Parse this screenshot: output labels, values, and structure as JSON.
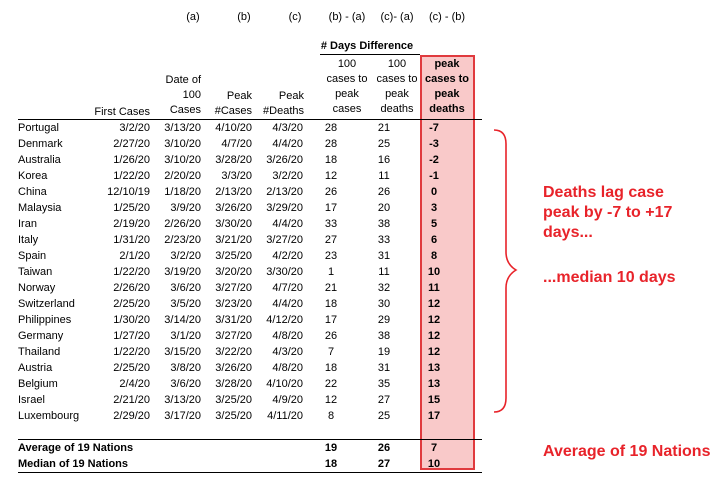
{
  "col_letters": [
    "(a)",
    "(b)",
    "(c)",
    "(b) - (a)",
    "(c)- (a)",
    "(c) - (b)"
  ],
  "days_difference_label": "# Days Difference",
  "headers": {
    "first_cases": "First Cases",
    "date100": [
      "Date of",
      "100",
      "Cases"
    ],
    "peak_cases": [
      "Peak",
      "#Cases"
    ],
    "peak_deaths": [
      "Peak",
      "#Deaths"
    ],
    "b_minus_a": [
      "100",
      "cases to",
      "peak",
      "cases"
    ],
    "c_minus_a": [
      "100",
      "cases to",
      "peak",
      "deaths"
    ],
    "c_minus_b": [
      "peak",
      "cases to",
      "peak",
      "deaths"
    ]
  },
  "rows": [
    [
      "Portugal",
      "3/2/20",
      "3/13/20",
      "4/10/20",
      "4/3/20",
      "28",
      "21",
      "-7"
    ],
    [
      "Denmark",
      "2/27/20",
      "3/10/20",
      "4/7/20",
      "4/4/20",
      "28",
      "25",
      "-3"
    ],
    [
      "Australia",
      "1/26/20",
      "3/10/20",
      "3/28/20",
      "3/26/20",
      "18",
      "16",
      "-2"
    ],
    [
      "Korea",
      "1/22/20",
      "2/20/20",
      "3/3/20",
      "3/2/20",
      "12",
      "11",
      "-1"
    ],
    [
      "China",
      "12/10/19",
      "1/18/20",
      "2/13/20",
      "2/13/20",
      "26",
      "26",
      "0"
    ],
    [
      "Malaysia",
      "1/25/20",
      "3/9/20",
      "3/26/20",
      "3/29/20",
      "17",
      "20",
      "3"
    ],
    [
      "Iran",
      "2/19/20",
      "2/26/20",
      "3/30/20",
      "4/4/20",
      "33",
      "38",
      "5"
    ],
    [
      "Italy",
      "1/31/20",
      "2/23/20",
      "3/21/20",
      "3/27/20",
      "27",
      "33",
      "6"
    ],
    [
      "Spain",
      "2/1/20",
      "3/2/20",
      "3/25/20",
      "4/2/20",
      "23",
      "31",
      "8"
    ],
    [
      "Taiwan",
      "1/22/20",
      "3/19/20",
      "3/20/20",
      "3/30/20",
      "1",
      "11",
      "10"
    ],
    [
      "Norway",
      "2/26/20",
      "3/6/20",
      "3/27/20",
      "4/7/20",
      "21",
      "32",
      "11"
    ],
    [
      "Switzerland",
      "2/25/20",
      "3/5/20",
      "3/23/20",
      "4/4/20",
      "18",
      "30",
      "12"
    ],
    [
      "Philippines",
      "1/30/20",
      "3/14/20",
      "3/31/20",
      "4/12/20",
      "17",
      "29",
      "12"
    ],
    [
      "Germany",
      "1/27/20",
      "3/1/20",
      "3/27/20",
      "4/8/20",
      "26",
      "38",
      "12"
    ],
    [
      "Thailand",
      "1/22/20",
      "3/15/20",
      "3/22/20",
      "4/3/20",
      "7",
      "19",
      "12"
    ],
    [
      "Austria",
      "2/25/20",
      "3/8/20",
      "3/26/20",
      "4/8/20",
      "18",
      "31",
      "13"
    ],
    [
      "Belgium",
      "2/4/20",
      "3/6/20",
      "3/28/20",
      "4/10/20",
      "22",
      "35",
      "13"
    ],
    [
      "Israel",
      "2/21/20",
      "3/13/20",
      "3/25/20",
      "4/9/20",
      "12",
      "27",
      "15"
    ],
    [
      "Luxembourg",
      "2/29/20",
      "3/17/20",
      "3/25/20",
      "4/11/20",
      "8",
      "25",
      "17"
    ]
  ],
  "summary": [
    [
      "Average of 19 Nations",
      "19",
      "26",
      "7"
    ],
    [
      "Median of 19 Nations",
      "18",
      "27",
      "10"
    ]
  ],
  "annotations": {
    "lag_lines": [
      "Deaths lag case",
      "peak by -7 to +17",
      "days..."
    ],
    "median": "...median 10 days",
    "average": "Average of 19 Nations"
  },
  "colors": {
    "highlight_fill": "#f9c9c9",
    "highlight_border": "#e03a3e",
    "annotation": "#e8232a"
  }
}
